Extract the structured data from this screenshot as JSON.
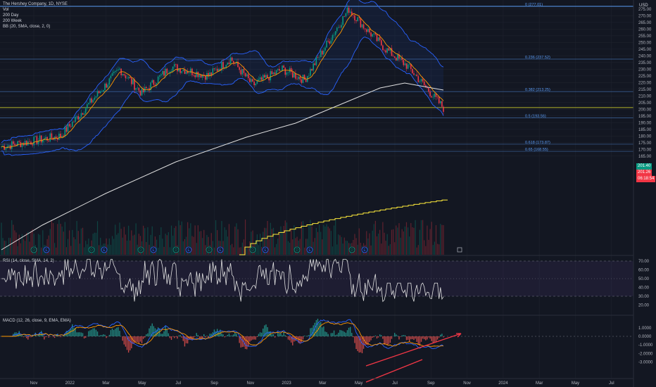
{
  "header": {
    "title": "The Hershey Company, 1D, NYSE",
    "lines": [
      "Vol",
      "200 Day",
      "200 Week",
      "BB (20, SMA, close, 2, 0)"
    ]
  },
  "currency": "USD",
  "price_axis": {
    "ticks": [
      "275.00",
      "270.00",
      "265.00",
      "260.00",
      "255.00",
      "250.00",
      "245.00",
      "240.00",
      "235.00",
      "230.00",
      "225.00",
      "220.00",
      "215.00",
      "210.00",
      "205.00",
      "200.00",
      "195.00",
      "190.00",
      "185.00",
      "180.00",
      "175.00",
      "170.00",
      "165.00"
    ],
    "tags": [
      {
        "text": "201.40",
        "color": "#089981"
      },
      {
        "text": "201.26",
        "color": "#f23645"
      },
      {
        "text": "06:18:54",
        "color": "#f23645"
      }
    ]
  },
  "fib_levels": [
    {
      "label": "0 (277.01)",
      "price": 277.01
    },
    {
      "label": "0.236 (237.52)",
      "price": 237.52
    },
    {
      "label": "0.382 (213.25)",
      "price": 213.25
    },
    {
      "label": "0.5 (193.56)",
      "price": 193.56
    },
    {
      "label": "0.618 (173.87)",
      "price": 173.87
    },
    {
      "label": "0.65 (168.55)",
      "price": 168.55
    }
  ],
  "support_level": 201.3,
  "rsi": {
    "label": "RSI (14, close, SMA, 14, 2)",
    "ticks": [
      "70.00",
      "60.00",
      "50.00",
      "40.00",
      "30.00",
      "20.00"
    ]
  },
  "macd": {
    "label": "MACD (12, 26, close, 9, EMA, EMA)",
    "ticks": [
      "1.0000",
      "0.0000",
      "-1.0000",
      "-2.0000",
      "-3.0000"
    ]
  },
  "time_axis": [
    "Nov",
    "2022",
    "Mar",
    "May",
    "Jul",
    "Sep",
    "Nov",
    "2023",
    "Mar",
    "May",
    "Jul",
    "Sep",
    "Nov",
    "2024",
    "Mar",
    "May",
    "Jul"
  ],
  "colors": {
    "up": "#089981",
    "down": "#f23645",
    "bb": "#2962ff",
    "ema": "#ff9800",
    "ma200d": "#e0e0e0",
    "ma200w": "#ffeb3b",
    "fib": "#5b9cf6",
    "support": "#b2b229"
  },
  "event_markers": [
    "D",
    "E",
    "D",
    "E",
    "D",
    "E",
    "D",
    "E",
    "D",
    "E",
    "D",
    "E",
    "D",
    "E",
    "D",
    "E"
  ]
}
